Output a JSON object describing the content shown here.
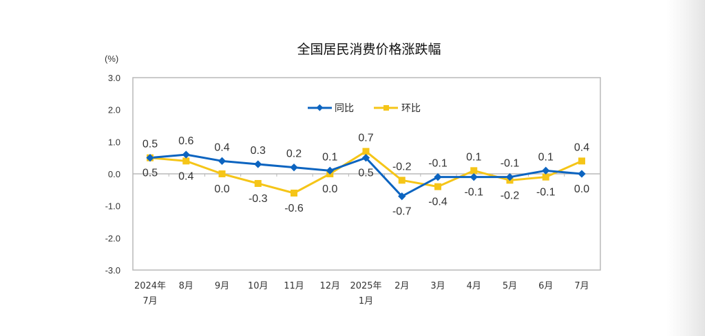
{
  "chart_data": {
    "type": "line",
    "title": "全国居民消费价格涨跌幅",
    "ylabel": "(%)",
    "xlabel": "",
    "ylim": [
      -3.0,
      3.0
    ],
    "yticks": [
      "3.0",
      "2.0",
      "1.0",
      "0.0",
      "-1.0",
      "-2.0",
      "-3.0"
    ],
    "categories": [
      [
        "2024年",
        "7月"
      ],
      [
        "8月"
      ],
      [
        "9月"
      ],
      [
        "10月"
      ],
      [
        "11月"
      ],
      [
        "12月"
      ],
      [
        "2025年",
        "1月"
      ],
      [
        "2月"
      ],
      [
        "3月"
      ],
      [
        "4月"
      ],
      [
        "5月"
      ],
      [
        "6月"
      ],
      [
        "7月"
      ]
    ],
    "legend_position": "top-center",
    "grid": false,
    "series": [
      {
        "name": "同比",
        "color": "#0c64c0",
        "marker": "diamond",
        "values": [
          0.5,
          0.6,
          0.4,
          0.3,
          0.2,
          0.1,
          0.5,
          -0.7,
          -0.1,
          -0.1,
          -0.1,
          0.1,
          0.0
        ],
        "labels": [
          "0.5",
          "0.6",
          "0.4",
          "0.3",
          "0.2",
          "0.1",
          "0.5",
          "-0.7",
          "-0.1",
          "-0.1",
          "-0.1",
          "0.1",
          "0.0"
        ]
      },
      {
        "name": "环比",
        "color": "#f5c518",
        "marker": "square",
        "values": [
          0.5,
          0.4,
          0.0,
          -0.3,
          -0.6,
          0.0,
          0.7,
          -0.2,
          -0.4,
          0.1,
          -0.2,
          -0.1,
          0.4
        ],
        "labels": [
          "0.5",
          "0.4",
          "0.0",
          "-0.3",
          "-0.6",
          "0.0",
          "0.7",
          "-0.2",
          "-0.4",
          "0.1",
          "-0.2",
          "-0.1",
          "0.4"
        ]
      }
    ]
  }
}
